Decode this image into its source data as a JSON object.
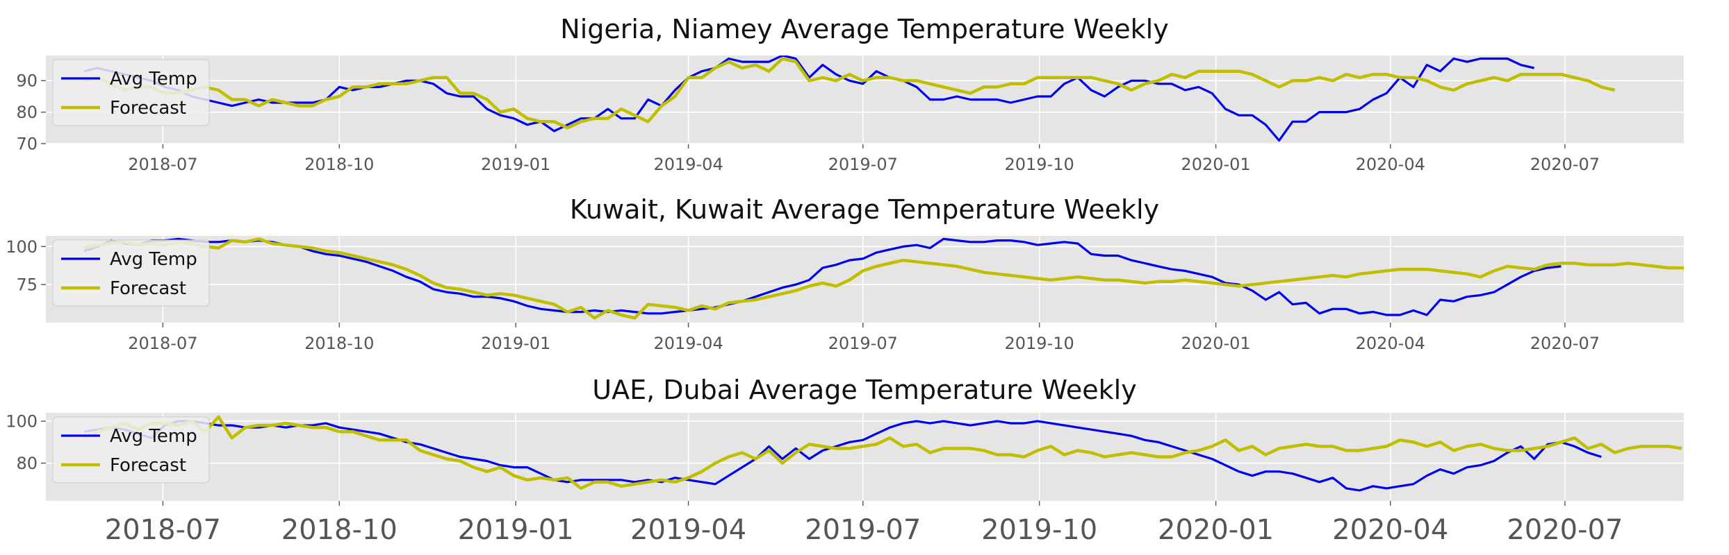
{
  "chart_data": [
    {
      "type": "line",
      "title": "Nigeria, Niamey Average Temperature Weekly",
      "xlabel": "",
      "ylabel": "",
      "x_tick_labels": [
        "2018-07",
        "2018-10",
        "2019-01",
        "2019-04",
        "2019-07",
        "2019-10",
        "2020-01",
        "2020-04",
        "2020-07"
      ],
      "y_ticks": [
        70,
        80,
        90
      ],
      "ylim": [
        70,
        98
      ],
      "grid": true,
      "legend": "upper-left",
      "series": [
        {
          "name": "Avg Temp",
          "color": "#0000ee",
          "start": "2018-05-21",
          "values": [
            93,
            94,
            93,
            92,
            91,
            90,
            88,
            87,
            85,
            84,
            83,
            82,
            83,
            84,
            83,
            83,
            83,
            83,
            84,
            88,
            87,
            88,
            88,
            89,
            90,
            90,
            89,
            86,
            85,
            85,
            81,
            79,
            78,
            76,
            77,
            74,
            76,
            78,
            78,
            81,
            78,
            78,
            84,
            82,
            87,
            91,
            93,
            94,
            97,
            96,
            96,
            96,
            98,
            97,
            91,
            95,
            92,
            90,
            89,
            93,
            91,
            90,
            88,
            84,
            84,
            85,
            84,
            84,
            84,
            83,
            84,
            85,
            85,
            89,
            91,
            87,
            85,
            88,
            90,
            90,
            89,
            89,
            87,
            88,
            86,
            81,
            79,
            79,
            76,
            71,
            77,
            77,
            80,
            80,
            80,
            81,
            84,
            86,
            91,
            88,
            95,
            93,
            97,
            96,
            97,
            97,
            97,
            95,
            94
          ]
        },
        {
          "name": "Forecast",
          "color": "#bfbf00",
          "start": "2018-05-21",
          "values": [
            90,
            91,
            89,
            87,
            88,
            88,
            86,
            86,
            87,
            88,
            87,
            84,
            84,
            82,
            84,
            83,
            82,
            82,
            84,
            85,
            88,
            88,
            89,
            89,
            89,
            90,
            91,
            91,
            86,
            86,
            84,
            80,
            81,
            78,
            77,
            77,
            75,
            77,
            78,
            78,
            81,
            79,
            77,
            82,
            85,
            91,
            91,
            94,
            96,
            94,
            95,
            93,
            97,
            96,
            90,
            91,
            90,
            92,
            90,
            91,
            91,
            90,
            90,
            89,
            88,
            87,
            86,
            88,
            88,
            89,
            89,
            91,
            91,
            91,
            91,
            91,
            90,
            89,
            87,
            89,
            90,
            92,
            91,
            93,
            93,
            93,
            93,
            92,
            90,
            88,
            90,
            90,
            91,
            90,
            92,
            91,
            92,
            92,
            91,
            91,
            90,
            88,
            87,
            89,
            90,
            91,
            90,
            92,
            92,
            92,
            92,
            91,
            90,
            88,
            87
          ]
        }
      ]
    },
    {
      "type": "line",
      "title": "Kuwait, Kuwait Average Temperature Weekly",
      "xlabel": "",
      "ylabel": "",
      "x_tick_labels": [
        "2018-07",
        "2018-10",
        "2019-01",
        "2019-04",
        "2019-07",
        "2019-10",
        "2020-01",
        "2020-04",
        "2020-07"
      ],
      "y_ticks": [
        75,
        100
      ],
      "ylim": [
        50,
        107
      ],
      "grid": true,
      "legend": "upper-left",
      "series": [
        {
          "name": "Avg Temp",
          "color": "#0000ee",
          "start": "2018-05-21",
          "values": [
            97,
            100,
            104,
            102,
            101,
            104,
            104,
            105,
            104,
            103,
            103,
            104,
            103,
            104,
            103,
            101,
            100,
            97,
            95,
            94,
            92,
            90,
            87,
            84,
            80,
            77,
            72,
            70,
            69,
            67,
            67,
            66,
            64,
            61,
            59,
            58,
            57,
            57,
            58,
            57,
            58,
            57,
            56,
            56,
            57,
            58,
            59,
            60,
            62,
            64,
            67,
            70,
            73,
            75,
            78,
            86,
            88,
            91,
            92,
            96,
            98,
            100,
            101,
            99,
            105,
            104,
            103,
            103,
            104,
            104,
            103,
            101,
            102,
            103,
            102,
            95,
            94,
            94,
            91,
            89,
            87,
            85,
            84,
            82,
            80,
            76,
            75,
            71,
            65,
            70,
            62,
            63,
            56,
            59,
            59,
            56,
            57,
            55,
            55,
            58,
            55,
            65,
            64,
            67,
            68,
            70,
            75,
            80,
            84,
            86,
            87
          ]
        },
        {
          "name": "Forecast",
          "color": "#bfbf00",
          "start": "2018-05-21",
          "values": [
            99,
            101,
            102,
            103,
            101,
            102,
            101,
            103,
            102,
            100,
            99,
            104,
            103,
            105,
            102,
            101,
            100,
            99,
            97,
            96,
            94,
            92,
            90,
            88,
            85,
            81,
            76,
            73,
            72,
            70,
            68,
            69,
            68,
            66,
            64,
            62,
            57,
            60,
            53,
            58,
            55,
            53,
            62,
            61,
            60,
            58,
            61,
            59,
            63,
            64,
            65,
            67,
            69,
            71,
            74,
            76,
            74,
            78,
            84,
            87,
            89,
            91,
            90,
            89,
            88,
            87,
            85,
            83,
            82,
            81,
            80,
            79,
            78,
            79,
            80,
            79,
            78,
            78,
            77,
            76,
            77,
            77,
            78,
            77,
            76,
            75,
            74,
            75,
            76,
            77,
            78,
            79,
            80,
            81,
            80,
            82,
            83,
            84,
            85,
            85,
            85,
            84,
            83,
            82,
            80,
            84,
            87,
            86,
            85,
            88,
            89,
            89,
            88,
            88,
            88,
            89,
            88,
            87,
            86,
            86,
            85,
            84,
            86,
            87,
            88,
            88,
            88
          ]
        }
      ]
    },
    {
      "type": "line",
      "title": "UAE, Dubai Average Temperature Weekly",
      "xlabel": "",
      "ylabel": "",
      "x_tick_labels": [
        "2018-07",
        "2018-10",
        "2019-01",
        "2019-04",
        "2019-07",
        "2019-10",
        "2020-01",
        "2020-04",
        "2020-07"
      ],
      "y_ticks": [
        80,
        100
      ],
      "ylim": [
        62,
        104
      ],
      "grid": true,
      "legend": "upper-left",
      "series": [
        {
          "name": "Avg Temp",
          "color": "#0000ee",
          "start": "2018-05-21",
          "values": [
            95,
            96,
            97,
            96,
            94,
            92,
            98,
            100,
            100,
            99,
            98,
            98,
            97,
            97,
            98,
            97,
            98,
            98,
            99,
            97,
            96,
            95,
            94,
            92,
            90,
            89,
            87,
            85,
            83,
            82,
            81,
            79,
            78,
            78,
            75,
            72,
            71,
            72,
            72,
            72,
            72,
            71,
            72,
            71,
            73,
            72,
            71,
            70,
            74,
            78,
            82,
            88,
            82,
            87,
            82,
            86,
            88,
            90,
            91,
            94,
            97,
            99,
            100,
            99,
            100,
            99,
            98,
            99,
            100,
            99,
            99,
            100,
            99,
            98,
            97,
            96,
            95,
            94,
            93,
            91,
            90,
            88,
            86,
            84,
            82,
            79,
            76,
            74,
            76,
            76,
            75,
            73,
            71,
            73,
            68,
            67,
            69,
            68,
            69,
            70,
            74,
            77,
            75,
            78,
            79,
            81,
            85,
            88,
            82,
            89,
            90,
            88,
            85,
            83
          ]
        },
        {
          "name": "Forecast",
          "color": "#bfbf00",
          "start": "2018-05-21",
          "values": [
            92,
            95,
            97,
            99,
            96,
            99,
            99,
            98,
            100,
            95,
            102,
            92,
            97,
            98,
            98,
            99,
            98,
            97,
            97,
            95,
            95,
            93,
            91,
            91,
            91,
            86,
            84,
            82,
            81,
            78,
            76,
            78,
            74,
            72,
            73,
            72,
            73,
            68,
            71,
            71,
            69,
            70,
            71,
            72,
            71,
            73,
            76,
            80,
            83,
            85,
            82,
            86,
            80,
            85,
            89,
            88,
            87,
            87,
            88,
            89,
            92,
            88,
            89,
            85,
            87,
            87,
            87,
            86,
            84,
            84,
            83,
            86,
            88,
            84,
            86,
            85,
            83,
            84,
            85,
            84,
            83,
            83,
            85,
            86,
            88,
            91,
            86,
            88,
            84,
            87,
            88,
            89,
            88,
            88,
            86,
            86,
            87,
            88,
            91,
            90,
            88,
            90,
            86,
            88,
            89,
            87,
            86,
            86,
            87,
            88,
            90,
            92,
            87,
            89,
            85,
            87,
            88,
            88,
            88,
            87
          ]
        }
      ]
    }
  ]
}
